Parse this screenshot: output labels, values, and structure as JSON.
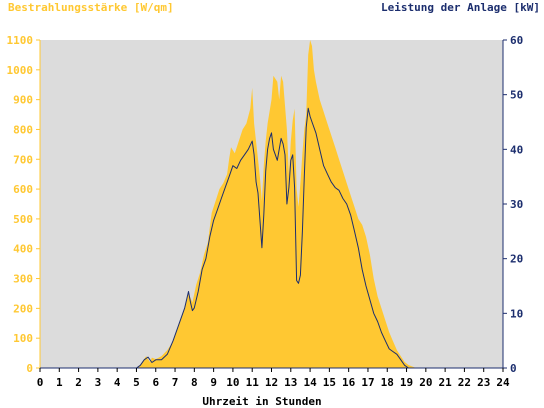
{
  "colors": {
    "background": "#ffffff",
    "plot_background": "#dcdcdc",
    "irradiance_fill": "#ffc832",
    "power_line": "#1c2e6e",
    "left_axis_text": "#ffc832",
    "right_axis_text": "#1c2e6e",
    "x_axis_text": "#000000"
  },
  "chart_data": {
    "type": "area",
    "left_axis_title": "Bestrahlungsstärke [W/qm]",
    "right_axis_title": "Leistung der Anlage [kW]",
    "xlabel": "Uhrzeit in Stunden",
    "xlim": [
      0,
      24
    ],
    "ylim_left": [
      0,
      1100
    ],
    "ylim_right": [
      0,
      60
    ],
    "x_ticks": [
      "0",
      "1",
      "2",
      "3",
      "4",
      "5",
      "6",
      "7",
      "8",
      "9",
      "10",
      "11",
      "12",
      "13",
      "14",
      "15",
      "16",
      "17",
      "18",
      "19",
      "20",
      "21",
      "22",
      "23",
      "24"
    ],
    "y_left_ticks": [
      "0",
      "100",
      "200",
      "300",
      "400",
      "500",
      "600",
      "700",
      "800",
      "900",
      "1000",
      "1100"
    ],
    "y_right_ticks": [
      "0",
      "10",
      "20",
      "30",
      "40",
      "50",
      "60"
    ],
    "grid": false,
    "series": [
      {
        "name": "Bestrahlungsstärke [W/qm]",
        "axis": "left",
        "style": "area",
        "x": [
          0,
          5.0,
          5.2,
          5.5,
          5.7,
          5.8,
          6.0,
          6.3,
          6.6,
          6.9,
          7.2,
          7.5,
          7.7,
          7.9,
          8.1,
          8.3,
          8.5,
          8.7,
          8.9,
          9.1,
          9.3,
          9.5,
          9.7,
          9.8,
          9.9,
          10.1,
          10.3,
          10.5,
          10.7,
          10.9,
          11.0,
          11.1,
          11.3,
          11.4,
          11.5,
          11.6,
          11.7,
          11.8,
          12.0,
          12.1,
          12.3,
          12.4,
          12.5,
          12.6,
          12.8,
          12.9,
          13.0,
          13.1,
          13.2,
          13.3,
          13.4,
          13.5,
          13.6,
          13.7,
          13.8,
          13.9,
          14.0,
          14.1,
          14.2,
          14.3,
          14.5,
          14.7,
          14.9,
          15.1,
          15.3,
          15.5,
          15.7,
          15.9,
          16.1,
          16.3,
          16.5,
          16.7,
          16.9,
          17.1,
          17.3,
          17.5,
          17.7,
          17.9,
          18.1,
          18.3,
          18.5,
          18.7,
          18.9,
          19.1,
          19.3,
          19.5,
          19.7,
          19.9,
          20.0,
          20.2,
          24
        ],
        "values": [
          0,
          0,
          10,
          40,
          20,
          35,
          30,
          40,
          60,
          90,
          150,
          200,
          250,
          220,
          280,
          320,
          380,
          420,
          520,
          560,
          600,
          620,
          650,
          700,
          740,
          720,
          760,
          800,
          820,
          870,
          940,
          820,
          700,
          640,
          560,
          680,
          760,
          820,
          900,
          980,
          960,
          900,
          980,
          960,
          800,
          650,
          760,
          830,
          870,
          600,
          540,
          620,
          720,
          800,
          850,
          1050,
          1100,
          1080,
          1000,
          960,
          900,
          860,
          820,
          780,
          740,
          700,
          660,
          620,
          580,
          540,
          500,
          480,
          440,
          380,
          300,
          240,
          200,
          160,
          120,
          90,
          60,
          40,
          20,
          10,
          5,
          0,
          0,
          0,
          0,
          0,
          0
        ]
      },
      {
        "name": "Leistung der Anlage [kW]",
        "axis": "right",
        "style": "line",
        "x": [
          0,
          5.0,
          5.2,
          5.4,
          5.6,
          5.8,
          6.0,
          6.3,
          6.6,
          6.9,
          7.2,
          7.5,
          7.7,
          7.8,
          7.9,
          8.0,
          8.2,
          8.4,
          8.6,
          8.8,
          9.0,
          9.2,
          9.4,
          9.6,
          9.8,
          10.0,
          10.2,
          10.4,
          10.6,
          10.8,
          11.0,
          11.1,
          11.2,
          11.3,
          11.5,
          11.6,
          11.7,
          11.8,
          11.9,
          12.0,
          12.1,
          12.3,
          12.5,
          12.6,
          12.7,
          12.8,
          12.9,
          13.0,
          13.1,
          13.2,
          13.3,
          13.4,
          13.5,
          13.6,
          13.7,
          13.8,
          13.9,
          14.0,
          14.1,
          14.3,
          14.5,
          14.7,
          14.9,
          15.1,
          15.3,
          15.5,
          15.7,
          15.9,
          16.1,
          16.3,
          16.5,
          16.7,
          16.9,
          17.1,
          17.3,
          17.5,
          17.7,
          17.9,
          18.1,
          18.3,
          18.5,
          18.7,
          18.9,
          19.1,
          19.3,
          19.5,
          19.7,
          20.0,
          24
        ],
        "values": [
          0,
          0,
          0.5,
          1.5,
          2,
          1,
          1.5,
          1.5,
          2.5,
          5,
          8,
          11,
          14,
          12,
          10.5,
          11,
          14,
          18,
          20,
          24,
          27,
          29,
          31,
          33,
          35,
          37,
          36.5,
          38,
          39,
          40,
          41.5,
          39,
          34,
          32,
          22,
          28,
          36,
          40,
          42,
          43,
          40,
          38,
          42,
          41,
          39,
          30,
          33,
          38,
          39,
          33,
          16,
          15.5,
          17,
          25,
          35,
          44,
          47.5,
          46,
          45,
          43,
          40,
          37,
          35.5,
          34,
          33,
          32.5,
          31,
          30,
          28,
          25,
          22,
          18,
          15,
          12.5,
          10,
          8.5,
          6.5,
          5,
          3.5,
          3,
          2.5,
          1.5,
          0.5,
          0,
          0,
          0,
          0,
          0,
          0
        ]
      }
    ]
  }
}
